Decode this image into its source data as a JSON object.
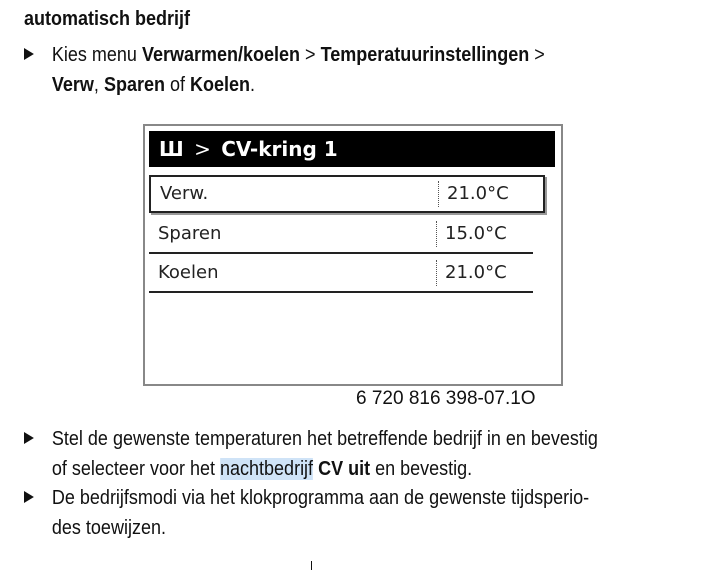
{
  "heading": "automatisch bedrijf",
  "step1": {
    "a": "Kies menu ",
    "b": "Verwarmen/koelen",
    "c": " > ",
    "d": "Temperatuurinstellingen",
    "e": " >",
    "f": "Verw",
    "g": ", ",
    "h": "Sparen",
    "i": " of ",
    "j": "Koelen",
    "k": "."
  },
  "display": {
    "icon": "heating-circuit-icon",
    "header": "CV-kring 1",
    "separator": ">",
    "rows": [
      {
        "label": "Verw.",
        "value": "21.0°C"
      },
      {
        "label": "Sparen",
        "value": "15.0°C"
      },
      {
        "label": "Koelen",
        "value": "21.0°C"
      }
    ]
  },
  "caption": "6 720 816 398-07.1O",
  "step2": {
    "a": "Stel de gewenste temperaturen het betreffende bedrijf in en bevestig",
    "b": "of selecteer voor het ",
    "c": "nachtbedrijf",
    "d": "CV uit",
    "e": " en bevestig."
  },
  "step3": {
    "a": "De bedrijfsmodi via het klokprogramma aan de gewenste tijdsperio-",
    "b": "des toewijzen."
  }
}
